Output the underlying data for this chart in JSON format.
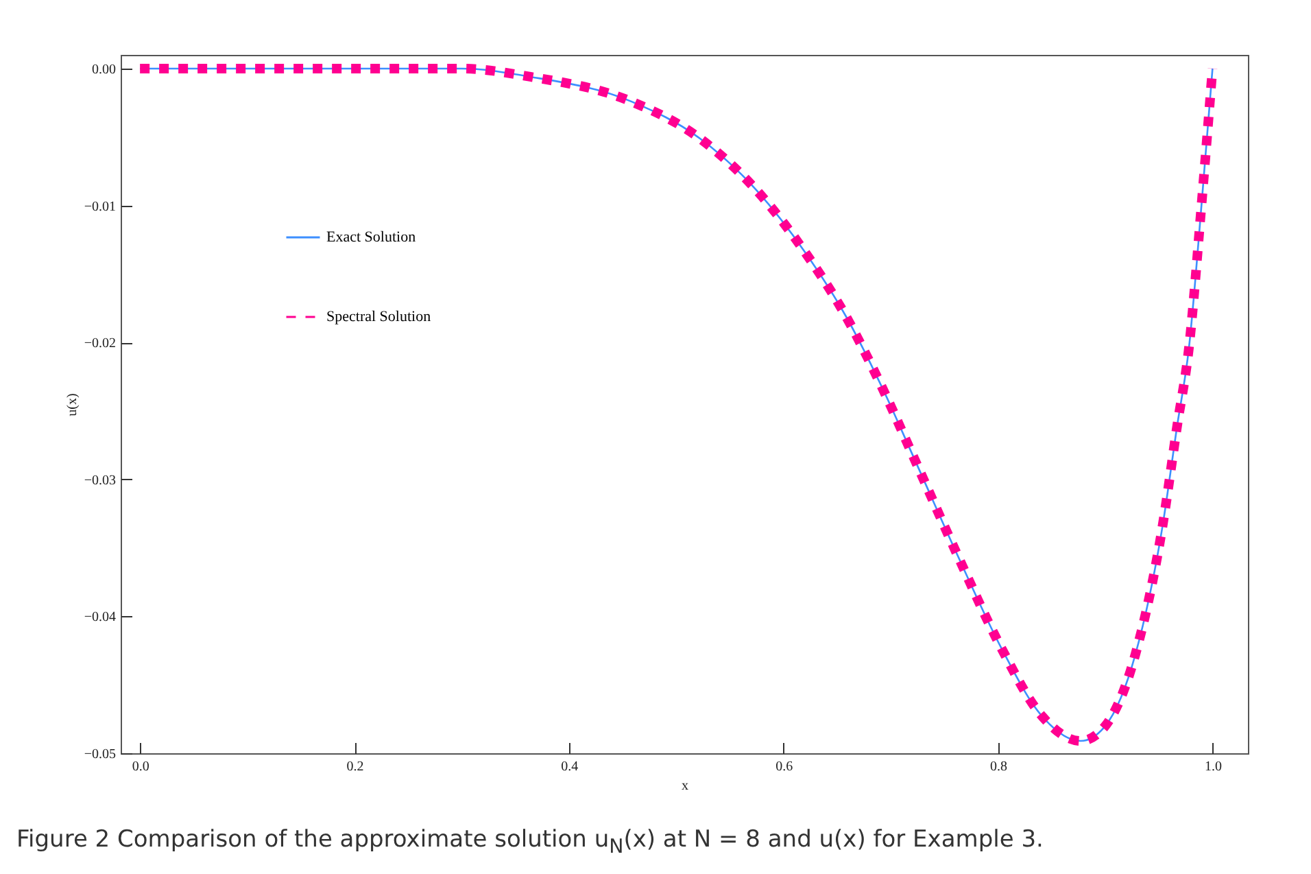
{
  "chart_data": {
    "type": "line",
    "xlabel": "x",
    "ylabel": "u(x)",
    "annotations": [
      "Figure 2 Comparison of the approximate solution u$_{N}$(x) at N = 8 and u(x) for Example 3."
    ],
    "x": [
      0,
      0.1,
      0.2,
      0.3,
      0.364,
      0.458,
      0.522,
      0.575,
      0.62,
      0.659,
      0.692,
      0.722,
      0.762,
      0.803,
      0.839,
      0.877,
      0.899,
      0.928,
      0.953,
      0.967,
      0.978,
      0.99,
      1.0
    ],
    "series": [
      {
        "name": "Exact Solution",
        "color": "#3d8fff",
        "line_style": "solid",
        "values": [
          0,
          0,
          0,
          0,
          -0.0006,
          -0.0024,
          -0.0051,
          -0.0089,
          -0.0134,
          -0.0182,
          -0.0233,
          -0.0285,
          -0.0355,
          -0.0423,
          -0.0471,
          -0.0491,
          -0.0481,
          -0.0428,
          -0.0336,
          -0.0261,
          -0.0204,
          -0.0097,
          0
        ]
      },
      {
        "name": "Spectral Solution",
        "color": "#ff0090",
        "line_style": "dotted",
        "values": [
          0,
          0,
          0,
          0,
          -0.0006,
          -0.0024,
          -0.0051,
          -0.0089,
          -0.0134,
          -0.0182,
          -0.0233,
          -0.0285,
          -0.0355,
          -0.0423,
          -0.0471,
          -0.0491,
          -0.0481,
          -0.0428,
          -0.0336,
          -0.0261,
          -0.0204,
          -0.0097,
          0
        ]
      }
    ],
    "xlim": [
      -0.018,
      1.033
    ],
    "ylim": [
      -0.05,
      0.001
    ],
    "xticks": [
      {
        "value": 0,
        "label": "0.0"
      },
      {
        "value": 0.2,
        "label": "0.2"
      },
      {
        "value": 0.4,
        "label": "0.4"
      },
      {
        "value": 0.6,
        "label": "0.6"
      },
      {
        "value": 0.8,
        "label": "0.8"
      },
      {
        "value": 1,
        "label": "1.0"
      }
    ],
    "yticks": [
      {
        "value": 0,
        "label": "0.00"
      },
      {
        "value": -0.01,
        "label": "−0.01"
      },
      {
        "value": -0.02,
        "label": "−0.02"
      },
      {
        "value": -0.03,
        "label": "−0.03"
      },
      {
        "value": -0.04,
        "label": "−0.04"
      },
      {
        "value": -0.05,
        "label": "−0.05"
      }
    ],
    "legend": "top left",
    "grid": false,
    "marker": "none"
  }
}
